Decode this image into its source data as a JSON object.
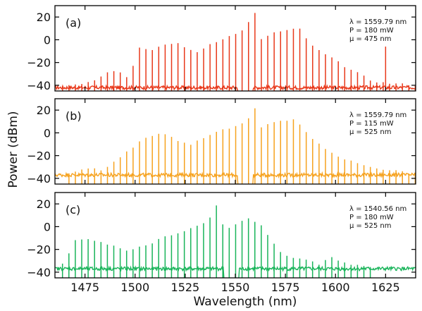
{
  "figure": {
    "ylabel": "Power (dBm)",
    "xlabel": "Wavelength (nm)",
    "x_ticks": [
      1475,
      1500,
      1525,
      1550,
      1575,
      1600,
      1625
    ],
    "y_ticks": [
      20,
      0,
      -20,
      -40
    ]
  },
  "chart_data": [
    {
      "type": "line",
      "panel_label": "(a)",
      "color": "#e8381a",
      "params": [
        "λ = 1559.79 nm",
        "P = 180 mW",
        "μ = 475 nm"
      ],
      "xlim": [
        1460,
        1640
      ],
      "ylim": [
        -45,
        30
      ],
      "pump_nm": 1559.79,
      "line_spacing_nm": 3.2,
      "floor_dbm": -42,
      "gap_nm": [
        1551,
        1559
      ],
      "envelope": [
        [
          1462,
          -41
        ],
        [
          1478,
          -37
        ],
        [
          1488,
          -26
        ],
        [
          1493,
          -29
        ],
        [
          1497,
          -34
        ],
        [
          1502,
          -6
        ],
        [
          1508,
          -10
        ],
        [
          1515,
          -4
        ],
        [
          1522,
          -3
        ],
        [
          1530,
          -12
        ],
        [
          1537,
          -4
        ],
        [
          1545,
          2
        ],
        [
          1552,
          6
        ],
        [
          1558,
          18
        ],
        [
          1560,
          22
        ],
        [
          1563,
          0
        ],
        [
          1568,
          6
        ],
        [
          1575,
          8
        ],
        [
          1582,
          10
        ],
        [
          1588,
          -5
        ],
        [
          1595,
          -13
        ],
        [
          1600,
          -18
        ],
        [
          1606,
          -25
        ],
        [
          1612,
          -30
        ],
        [
          1618,
          -36
        ],
        [
          1625,
          -38
        ],
        [
          1634,
          -39
        ],
        [
          1640,
          -40
        ]
      ],
      "extra_lines": [
        [
          1625,
          -6
        ]
      ]
    },
    {
      "type": "line",
      "panel_label": "(b)",
      "color": "#f6a21e",
      "params": [
        "λ = 1559.79 nm",
        "P = 115 mW",
        "μ = 525 nm"
      ],
      "xlim": [
        1460,
        1640
      ],
      "ylim": [
        -45,
        30
      ],
      "pump_nm": 1559.79,
      "line_spacing_nm": 3.2,
      "floor_dbm": -37,
      "gap_nm": [
        1551,
        1559
      ],
      "envelope": [
        [
          1462,
          -37
        ],
        [
          1470,
          -34
        ],
        [
          1478,
          -31
        ],
        [
          1484,
          -33
        ],
        [
          1488,
          -28
        ],
        [
          1492,
          -22
        ],
        [
          1498,
          -14
        ],
        [
          1503,
          -6
        ],
        [
          1510,
          -1
        ],
        [
          1515,
          -2
        ],
        [
          1522,
          -7
        ],
        [
          1527,
          -11
        ],
        [
          1532,
          -6
        ],
        [
          1540,
          0
        ],
        [
          1548,
          5
        ],
        [
          1555,
          10
        ],
        [
          1558,
          16
        ],
        [
          1560,
          20
        ],
        [
          1563,
          5
        ],
        [
          1568,
          9
        ],
        [
          1573,
          10
        ],
        [
          1580,
          12
        ],
        [
          1585,
          2
        ],
        [
          1590,
          -8
        ],
        [
          1596,
          -15
        ],
        [
          1601,
          -20
        ],
        [
          1606,
          -24
        ],
        [
          1612,
          -27
        ],
        [
          1618,
          -30
        ],
        [
          1625,
          -32
        ],
        [
          1633,
          -34
        ],
        [
          1640,
          -36
        ]
      ],
      "extra_lines": []
    },
    {
      "type": "line",
      "panel_label": "(c)",
      "color": "#19b45a",
      "params": [
        "λ = 1540.56 nm",
        "P = 180 mW",
        "μ = 525 nm"
      ],
      "xlim": [
        1460,
        1640
      ],
      "ylim": [
        -45,
        30
      ],
      "pump_nm": 1540.56,
      "line_spacing_nm": 3.2,
      "floor_dbm": -37,
      "gap_nm": [
        1544,
        1552
      ],
      "envelope": [
        [
          1462,
          -37
        ],
        [
          1466,
          -28
        ],
        [
          1470,
          -12
        ],
        [
          1476,
          -11
        ],
        [
          1482,
          -13
        ],
        [
          1487,
          -16
        ],
        [
          1492,
          -18
        ],
        [
          1497,
          -22
        ],
        [
          1502,
          -18
        ],
        [
          1508,
          -15
        ],
        [
          1514,
          -9
        ],
        [
          1520,
          -7
        ],
        [
          1526,
          -3
        ],
        [
          1532,
          1
        ],
        [
          1537,
          6
        ],
        [
          1540,
          20
        ],
        [
          1543,
          2
        ],
        [
          1548,
          -2
        ],
        [
          1552,
          5
        ],
        [
          1557,
          7
        ],
        [
          1562,
          3
        ],
        [
          1567,
          -10
        ],
        [
          1573,
          -23
        ],
        [
          1580,
          -28
        ],
        [
          1586,
          -30
        ],
        [
          1592,
          -33
        ],
        [
          1598,
          -27
        ],
        [
          1602,
          -30
        ],
        [
          1610,
          -34
        ],
        [
          1620,
          -36
        ],
        [
          1630,
          -37
        ],
        [
          1640,
          -38
        ]
      ],
      "extra_lines": []
    }
  ]
}
